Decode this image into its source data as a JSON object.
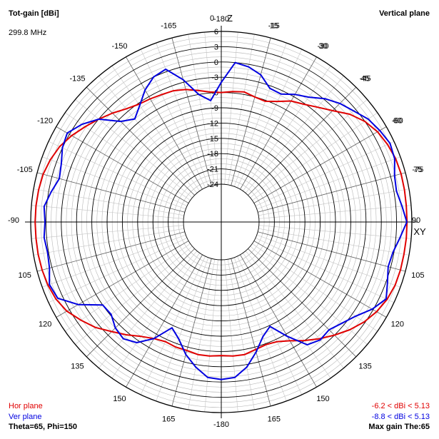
{
  "header": {
    "title": "Tot-gain [dBi]",
    "frequency": "299.8 MHz",
    "plane": "Vertical plane"
  },
  "footer": {
    "hor_legend": "Hor plane",
    "ver_legend": "Ver plane",
    "angles": "Theta=65, Phi=150",
    "hor_range": "-6.2 < dBi < 5.13",
    "ver_range": "-8.8 < dBi < 5.13",
    "max_gain": "Max gain The:65"
  },
  "colors": {
    "hor": "#e00000",
    "ver": "#0000e0",
    "grid": "#000000"
  },
  "chart_data": {
    "type": "line",
    "coordinate_system": "polar",
    "zero_angle": "top",
    "direction": "clockwise",
    "rlim": [
      -24,
      6
    ],
    "radial_ticks": [
      6,
      3,
      0,
      -3,
      -6,
      -9,
      -12,
      -15,
      -18,
      -21,
      -24
    ],
    "angle_tick_labels": [
      "0",
      "15",
      "30",
      "45",
      "60",
      "75",
      "90",
      "105",
      "120",
      "135",
      "150",
      "165",
      "-180",
      "165",
      "150",
      "135",
      "120",
      "105",
      "-90",
      "-105",
      "-120",
      "-135",
      "-150",
      "-165",
      "-180",
      "-15",
      "-30",
      "-45",
      "-60",
      "-75"
    ],
    "axis_labels": {
      "top": "Z",
      "right": "XY"
    },
    "series": [
      {
        "name": "Hor plane",
        "color": "#e00000",
        "theta": [
          0,
          5,
          10,
          15,
          20,
          25,
          30,
          35,
          40,
          45,
          50,
          55,
          60,
          65,
          70,
          75,
          80,
          85,
          90,
          95,
          100,
          105,
          110,
          115,
          120,
          125,
          130,
          135,
          140,
          145,
          150,
          155,
          160,
          165,
          170,
          175,
          180,
          185,
          190,
          195,
          200,
          205,
          210,
          215,
          220,
          225,
          230,
          235,
          240,
          245,
          250,
          255,
          260,
          265,
          270,
          275,
          280,
          285,
          290,
          295,
          300,
          305,
          310,
          315,
          320,
          325,
          330,
          335,
          340,
          345,
          350,
          355
        ],
        "gain": [
          -6,
          -5.7,
          -5.5,
          -6,
          -6.2,
          -5.3,
          -4,
          -3.2,
          -2,
          -0.5,
          1.5,
          3,
          4,
          4.6,
          5,
          5.13,
          5.1,
          5.05,
          5.05,
          5.05,
          5,
          5,
          4.9,
          4.5,
          3.8,
          2.8,
          1.5,
          0,
          -1.5,
          -3,
          -4.5,
          -5.5,
          -5.8,
          -5.5,
          -5,
          -5,
          -5.2,
          -5,
          -5,
          -5.3,
          -5.3,
          -5.5,
          -5,
          -4,
          -2.5,
          -1,
          0.8,
          2.2,
          3.6,
          4.4,
          4.8,
          5,
          5.1,
          5.1,
          5.13,
          5.1,
          5,
          4.8,
          4.3,
          3.6,
          2.5,
          1.2,
          0,
          -1.2,
          -2.4,
          -3.2,
          -3.5,
          -3.8,
          -4,
          -4.5,
          -5.2,
          -5.8
        ]
      },
      {
        "name": "Ver plane",
        "color": "#0000e0",
        "theta": [
          0,
          5,
          10,
          15,
          20,
          25,
          30,
          35,
          40,
          45,
          50,
          55,
          60,
          65,
          70,
          75,
          80,
          85,
          90,
          95,
          100,
          105,
          110,
          115,
          120,
          125,
          130,
          135,
          140,
          145,
          150,
          155,
          160,
          165,
          170,
          175,
          180,
          185,
          190,
          195,
          200,
          205,
          210,
          215,
          220,
          225,
          230,
          235,
          240,
          245,
          250,
          255,
          260,
          265,
          270,
          275,
          280,
          285,
          290,
          295,
          300,
          305,
          310,
          315,
          320,
          325,
          330,
          335,
          340,
          345,
          350,
          355
        ],
        "gain": [
          -4,
          0,
          -0.5,
          -1.5,
          -3.5,
          -3.7,
          -2.5,
          -1.5,
          0.2,
          1.5,
          2.5,
          3.8,
          4.5,
          5.13,
          4.8,
          3.8,
          3.5,
          4.2,
          5,
          3.8,
          2.8,
          2.5,
          3.3,
          4.3,
          2.8,
          0.8,
          -0.5,
          -1.5,
          -1.2,
          -2,
          -5.5,
          -8.8,
          -7.5,
          -5,
          -2.5,
          -0.8,
          -0.5,
          -0.8,
          -2.5,
          -4.5,
          -7,
          -8.5,
          -5,
          -2.5,
          -1.5,
          -2,
          -3.2,
          -3,
          1,
          4,
          4.5,
          3.5,
          3.2,
          3.5,
          3.2,
          3.5,
          2.5,
          1.5,
          2,
          3,
          3.5,
          2,
          0,
          -3.5,
          -5,
          -3.5,
          -1.5,
          0,
          0.5,
          -2.5,
          -6,
          -7.5
        ]
      }
    ]
  }
}
